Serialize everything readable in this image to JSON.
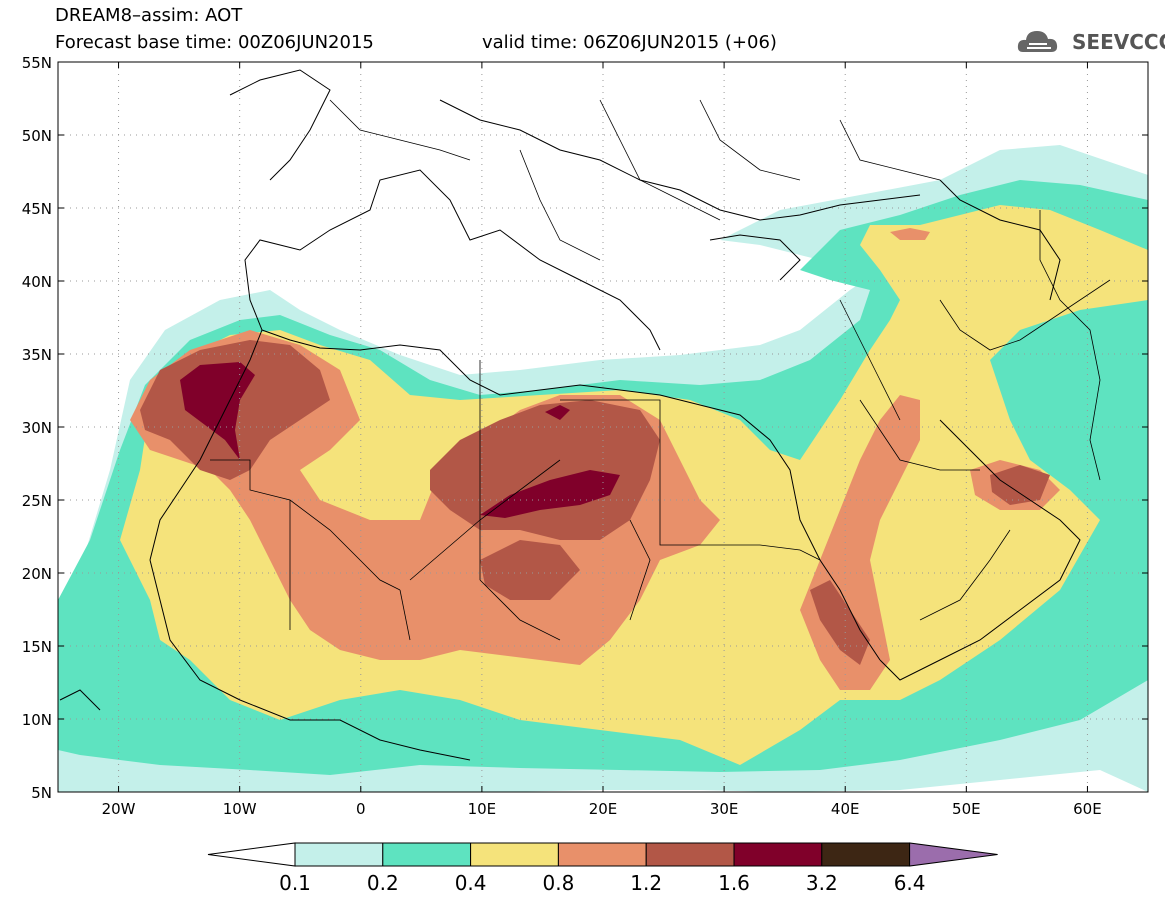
{
  "title": {
    "line1": "DREAM8–assim: AOT",
    "line2_left": "Forecast base time: 00Z06JUN2015",
    "line2_right": "valid time: 06Z06JUN2015 (+06)"
  },
  "logo": {
    "text": "SEEVCCC",
    "icon": "cloud-icon"
  },
  "map": {
    "lon_range": [
      -25,
      65
    ],
    "lat_range": [
      5,
      55
    ],
    "lat_labels": [
      "55N",
      "50N",
      "45N",
      "40N",
      "35N",
      "30N",
      "25N",
      "20N",
      "15N",
      "10N",
      "5N"
    ],
    "lon_labels": [
      "20W",
      "10W",
      "0",
      "10E",
      "20E",
      "30E",
      "40E",
      "50E",
      "60E"
    ],
    "grid": true,
    "variable": "AOT"
  },
  "legend": {
    "colors": [
      "#ffffff",
      "#c4f0ea",
      "#5ee3c0",
      "#f5e37b",
      "#e8906a",
      "#b25747",
      "#80002a",
      "#3d2614",
      "#9b6dac"
    ],
    "labels": [
      "0.1",
      "0.2",
      "0.4",
      "0.8",
      "1.2",
      "1.6",
      "3.2",
      "6.4"
    ]
  }
}
